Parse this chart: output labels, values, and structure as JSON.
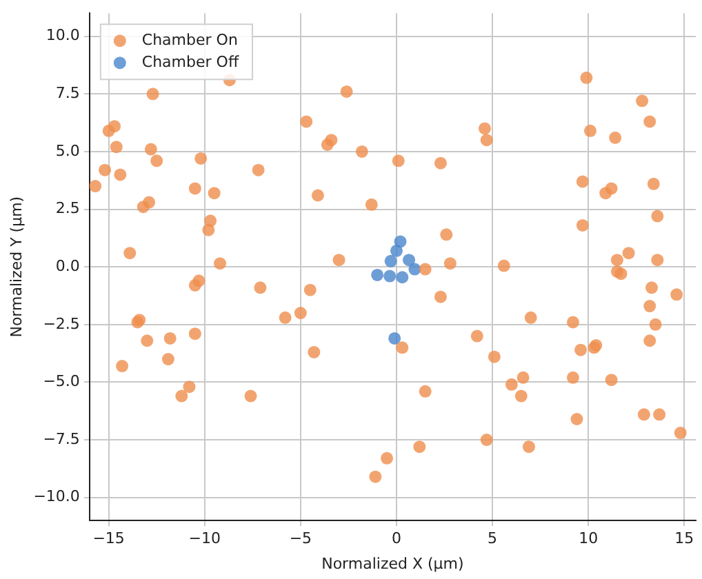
{
  "chart_data": {
    "type": "scatter",
    "xlabel": "Normalized X (µm)",
    "ylabel": "Normalized Y (µm)",
    "xlim": [
      -16,
      15.6
    ],
    "ylim": [
      -11,
      11
    ],
    "xticks": [
      {
        "value": -15,
        "label": "−15"
      },
      {
        "value": -10,
        "label": "−10"
      },
      {
        "value": -5,
        "label": "−5"
      },
      0,
      5,
      10,
      15
    ],
    "yticks": [
      {
        "value": -10,
        "label": "−10.0"
      },
      {
        "value": -7.5,
        "label": "−7.5"
      },
      {
        "value": -5,
        "label": "−5.0"
      },
      {
        "value": -2.5,
        "label": "−2.5"
      },
      {
        "value": 0,
        "label": "0.0"
      },
      2.5,
      {
        "value": 5,
        "label": "5.0"
      },
      7.5,
      {
        "value": 10,
        "label": "10.0"
      }
    ],
    "grid": true,
    "legend": "top left",
    "marker": "circle",
    "series": [
      {
        "name": "Chamber On",
        "color": "#ef8d4c",
        "x": [
          -15.7,
          -15.2,
          -15.0,
          -14.7,
          -14.6,
          -14.4,
          -14.3,
          -13.9,
          -13.5,
          -13.4,
          -13.2,
          -13.0,
          -12.9,
          -12.8,
          -12.7,
          -12.5,
          -11.9,
          -11.8,
          -11.2,
          -10.8,
          -10.5,
          -10.5,
          -10.3,
          -10.5,
          -10.2,
          -9.7,
          -9.8,
          -9.5,
          -9.2,
          -8.7,
          -7.6,
          -7.2,
          -7.1,
          -5.8,
          -5.0,
          -4.7,
          -4.5,
          -4.3,
          -4.1,
          -3.6,
          -3.4,
          -3.0,
          -2.6,
          -1.8,
          -1.3,
          -1.1,
          -0.5,
          0.1,
          0.3,
          1.5,
          1.5,
          1.2,
          2.3,
          2.6,
          2.3,
          2.8,
          4.2,
          4.6,
          4.7,
          4.7,
          5.1,
          5.6,
          6.0,
          6.6,
          6.5,
          7.0,
          6.9,
          9.2,
          9.2,
          9.4,
          9.6,
          9.7,
          9.7,
          9.9,
          10.1,
          10.3,
          10.4,
          10.9,
          11.2,
          11.2,
          11.4,
          11.5,
          11.5,
          11.7,
          12.1,
          12.8,
          12.9,
          13.2,
          13.2,
          13.3,
          13.2,
          13.4,
          13.5,
          13.6,
          13.6,
          13.7,
          14.6,
          14.8
        ],
        "values": [
          3.5,
          4.2,
          5.9,
          6.1,
          5.2,
          4.0,
          -4.3,
          0.6,
          -2.4,
          -2.3,
          2.6,
          -3.2,
          2.8,
          5.1,
          7.5,
          4.6,
          -4.0,
          -3.1,
          -5.6,
          -5.2,
          -2.9,
          -0.8,
          -0.6,
          3.4,
          4.7,
          2.0,
          1.6,
          3.2,
          0.15,
          8.1,
          -5.6,
          4.2,
          -0.9,
          -2.2,
          -2.0,
          6.3,
          -1.0,
          -3.7,
          3.1,
          5.3,
          5.5,
          0.3,
          7.6,
          5.0,
          2.7,
          -9.1,
          -8.3,
          4.6,
          -3.5,
          -0.1,
          -5.4,
          -7.8,
          4.5,
          1.4,
          -1.3,
          0.15,
          -3.0,
          6.0,
          5.5,
          -7.5,
          -3.9,
          0.05,
          -5.1,
          -4.8,
          -5.6,
          -2.2,
          -7.8,
          -2.4,
          -4.8,
          -6.6,
          -3.6,
          3.7,
          1.8,
          8.2,
          5.9,
          -3.5,
          -3.4,
          3.2,
          3.4,
          -4.9,
          5.6,
          0.3,
          -0.2,
          -0.3,
          0.6,
          7.2,
          -6.4,
          6.3,
          -1.7,
          -0.9,
          -3.2,
          3.6,
          -2.5,
          0.3,
          2.2,
          -6.4,
          -1.2,
          -7.2
        ]
      },
      {
        "name": "Chamber Off",
        "color": "#4a86cc",
        "x": [
          -1.0,
          -0.35,
          0.3,
          0.95,
          0.65,
          -0.3,
          0.0,
          0.2,
          -0.1
        ],
        "values": [
          -0.35,
          -0.4,
          -0.45,
          -0.1,
          0.3,
          0.25,
          0.7,
          1.1,
          -3.1
        ]
      }
    ]
  }
}
